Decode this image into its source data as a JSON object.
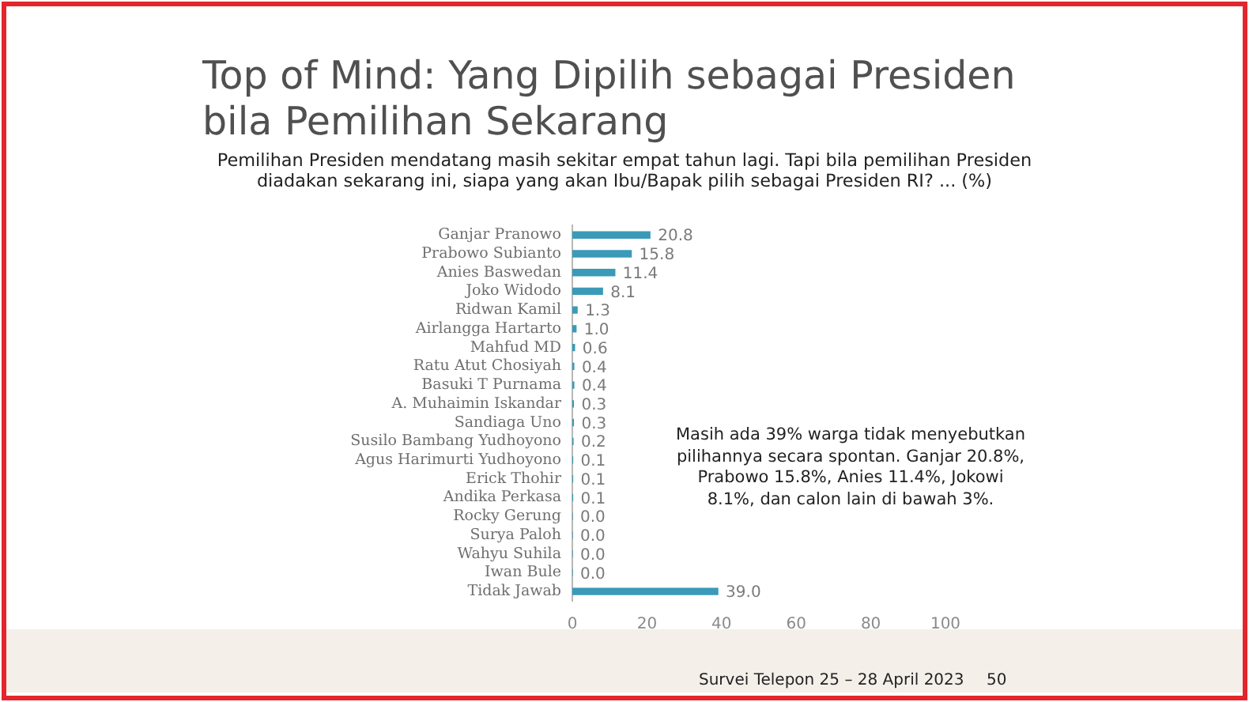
{
  "chart_data": {
    "type": "bar",
    "orientation": "horizontal",
    "title": "Top of Mind: Yang Dipilih sebagai Presiden bila Pemilihan Sekarang",
    "subtitle": "Pemilihan Presiden mendatang masih sekitar empat tahun lagi. Tapi bila pemilihan Presiden diadakan sekarang ini, siapa yang akan Ibu/Bapak pilih sebagai Presiden RI? ... (%)",
    "categories": [
      "Ganjar Pranowo",
      "Prabowo Subianto",
      "Anies Baswedan",
      "Joko Widodo",
      "Ridwan Kamil",
      "Airlangga Hartarto",
      "Mahfud MD",
      "Ratu Atut Chosiyah",
      "Basuki T Purnama",
      "A. Muhaimin Iskandar",
      "Sandiaga Uno",
      "Susilo Bambang Yudhoyono",
      "Agus Harimurti Yudhoyono",
      "Erick Thohir",
      "Andika Perkasa",
      "Rocky Gerung",
      "Surya Paloh",
      "Wahyu Suhila",
      "Iwan Bule",
      "Tidak Jawab"
    ],
    "values": [
      20.8,
      15.8,
      11.4,
      8.1,
      1.3,
      1.0,
      0.6,
      0.4,
      0.4,
      0.3,
      0.3,
      0.2,
      0.1,
      0.1,
      0.1,
      0.0,
      0.0,
      0.0,
      0.0,
      39.0
    ],
    "value_labels": [
      "20.8",
      "15.8",
      "11.4",
      "8.1",
      "1.3",
      "1.0",
      "0.6",
      "0.4",
      "0.4",
      "0.3",
      "0.3",
      "0.2",
      "0.1",
      "0.1",
      "0.1",
      "0.0",
      "0.0",
      "0.0",
      "0.0",
      "39.0"
    ],
    "color": "#3a9ab8",
    "xlim": [
      0,
      100
    ],
    "xticks": [
      0,
      20,
      40,
      60,
      80,
      100
    ],
    "grid": false,
    "annotations": [
      "Masih ada 39% warga tidak menyebutkan pilihannya secara spontan. Ganjar 20.8%, Prabowo 15.8%, Anies 11.4%, Jokowi 8.1%, dan calon lain di bawah 3%.",
      "Survei Telepon 25 – 28 April 2023",
      "50"
    ]
  }
}
